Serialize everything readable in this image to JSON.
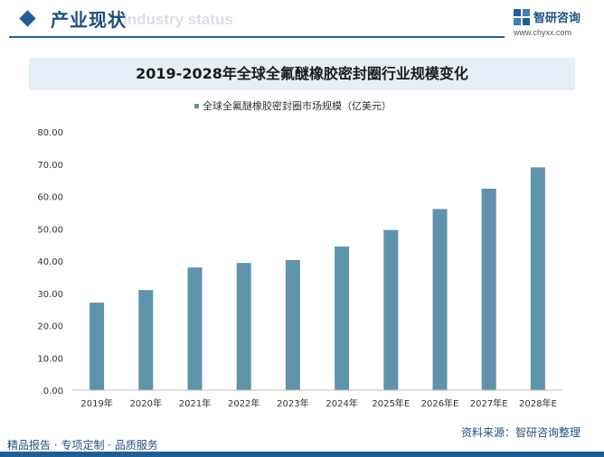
{
  "header": {
    "section_title": "产业现状",
    "ghost_text": "Industry status",
    "brand_name": "智研咨询",
    "brand_url": "www.chyxx.com"
  },
  "chart_title": "2019-2028年全球全氟醚橡胶密封圈行业规模变化",
  "chart_data": {
    "type": "bar",
    "title": "2019-2028年全球全氟醚橡胶密封圈行业规模变化",
    "categories": [
      "2019年",
      "2020年",
      "2021年",
      "2022年",
      "2023年",
      "2024年",
      "2025年E",
      "2026年E",
      "2027年E",
      "2028年E"
    ],
    "series": [
      {
        "name": "全球全氟醚橡胶密封圈市场规模（亿美元）",
        "values": [
          27.1,
          31.0,
          38.0,
          39.4,
          40.3,
          44.5,
          49.6,
          56.1,
          62.4,
          69.0
        ]
      }
    ],
    "y_ticks": [
      "0.00",
      "10.00",
      "20.00",
      "30.00",
      "40.00",
      "50.00",
      "60.00",
      "70.00",
      "80.00"
    ],
    "ylim": [
      0,
      80
    ],
    "grid": false,
    "legend_position": "top",
    "bar_color": "#5f93ab"
  },
  "footer": {
    "slogan": "精品报告 · 专项定制 · 品质服务",
    "source": "资料来源：智研咨询整理"
  }
}
